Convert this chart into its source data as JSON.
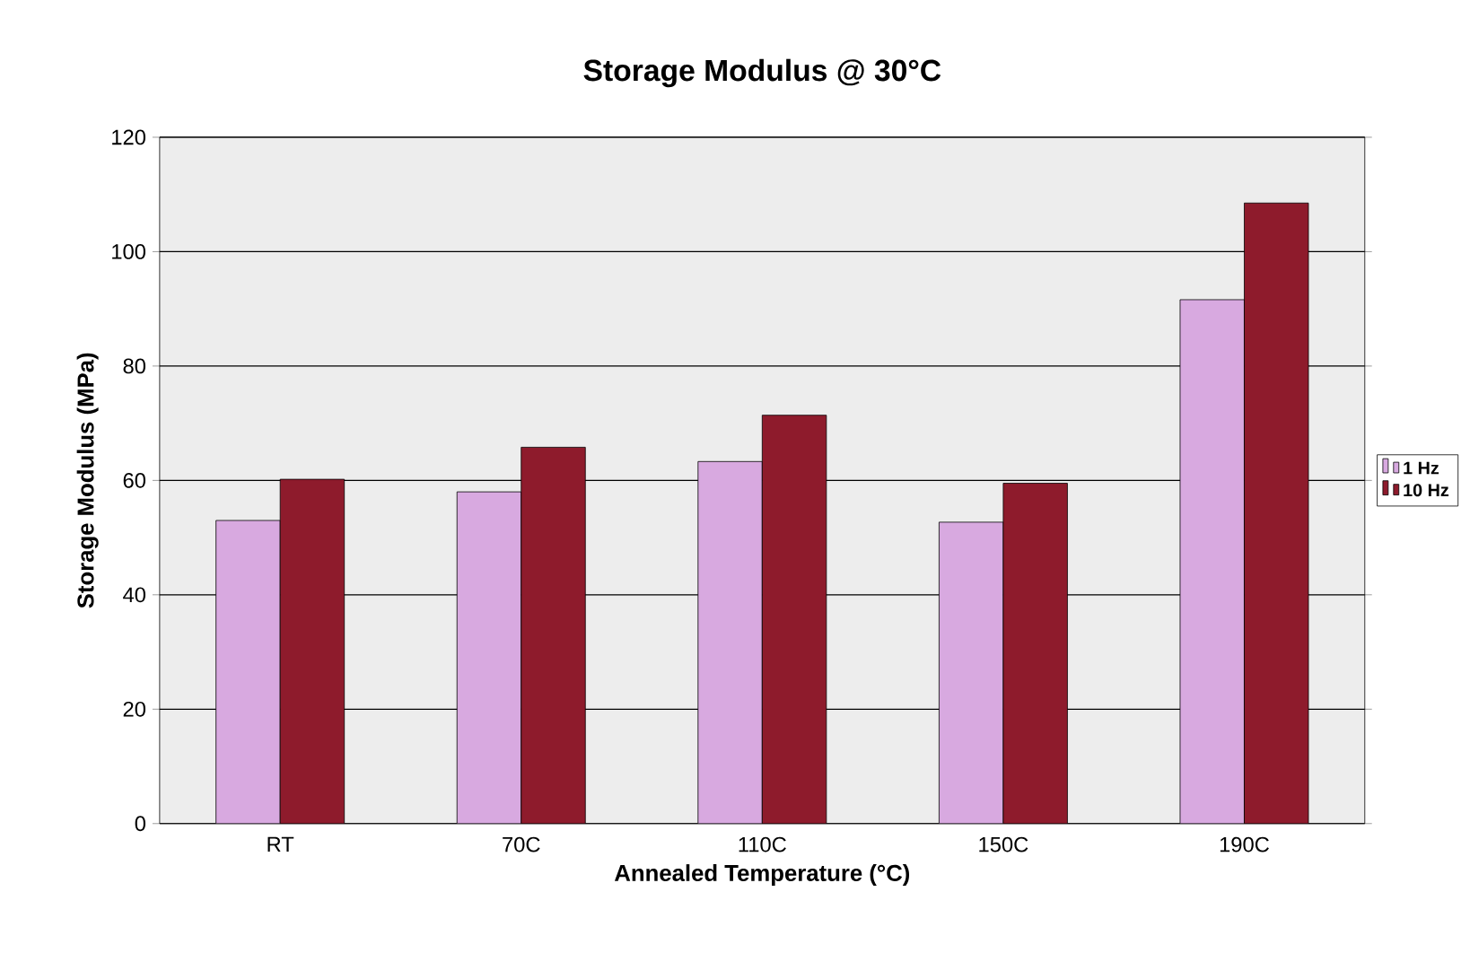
{
  "chart_data": {
    "type": "bar",
    "title": "Storage Modulus @ 30°C",
    "xlabel": "Annealed Temperature (°C)",
    "ylabel": "Storage Modulus (MPa)",
    "categories": [
      "RT",
      "70C",
      "110C",
      "150C",
      "190C"
    ],
    "series": [
      {
        "name": "1 Hz",
        "color": "#d8a9e0",
        "values": [
          53,
          58,
          63.3,
          52.7,
          91.6
        ]
      },
      {
        "name": "10 Hz",
        "color": "#8e1b2c",
        "values": [
          60.2,
          65.8,
          71.4,
          59.5,
          108.5
        ]
      }
    ],
    "ylim": [
      0,
      120
    ],
    "yticks": [
      0,
      20,
      40,
      60,
      80,
      100,
      120
    ],
    "grid": "y",
    "legend": "right"
  }
}
